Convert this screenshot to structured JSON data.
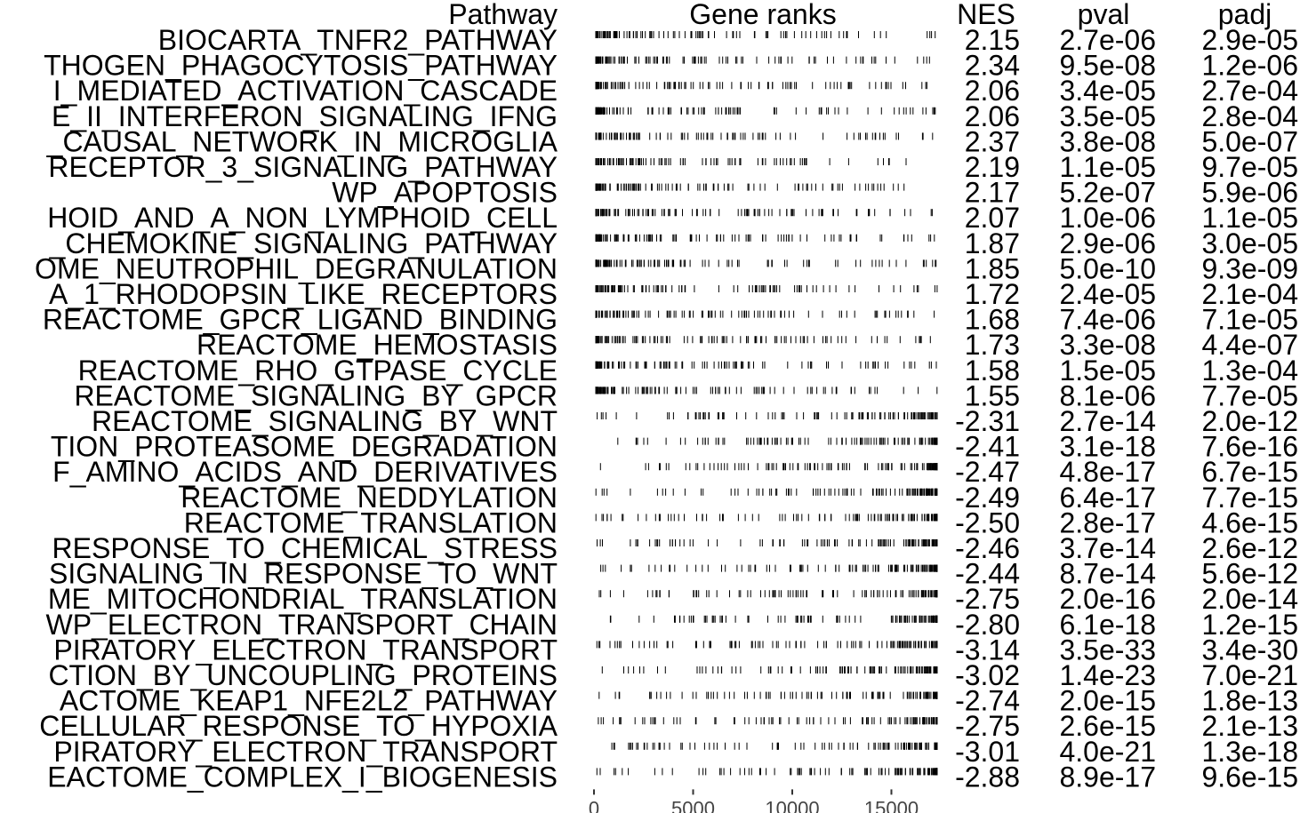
{
  "headers": {
    "pathway": "Pathway",
    "gene_ranks": "Gene ranks",
    "nes": "NES",
    "pval": "pval",
    "padj": "padj"
  },
  "chart_data": {
    "type": "table",
    "columns": [
      "Pathway",
      "Gene ranks",
      "NES",
      "pval",
      "padj"
    ],
    "x_axis": {
      "ticks": [
        0,
        5000,
        10000,
        15000
      ],
      "range": [
        0,
        17400
      ]
    },
    "rows": [
      {
        "pathway": "BIOCARTA_TNFR2_PATHWAY",
        "nes": "2.15",
        "pval": "2.7e-06",
        "padj": "2.9e-05"
      },
      {
        "pathway": "THOGEN_PHAGOCYTOSIS_PATHWAY",
        "nes": "2.34",
        "pval": "9.5e-08",
        "padj": "1.2e-06"
      },
      {
        "pathway": "I_MEDIATED_ACTIVATION_CASCADE",
        "nes": "2.06",
        "pval": "3.4e-05",
        "padj": "2.7e-04"
      },
      {
        "pathway": "E_II_INTERFERON_SIGNALING_IFNG",
        "nes": "2.06",
        "pval": "3.5e-05",
        "padj": "2.8e-04"
      },
      {
        "pathway": "_CAUSAL_NETWORK_IN_MICROGLIA",
        "nes": "2.37",
        "pval": "3.8e-08",
        "padj": "5.0e-07"
      },
      {
        "pathway": "RECEPTOR_3_SIGNALING_PATHWAY",
        "nes": "2.19",
        "pval": "1.1e-05",
        "padj": "9.7e-05"
      },
      {
        "pathway": "WP_APOPTOSIS",
        "nes": "2.17",
        "pval": "5.2e-07",
        "padj": "5.9e-06"
      },
      {
        "pathway": "HOID_AND_A_NON_LYMPHOID_CELL",
        "nes": "2.07",
        "pval": "1.0e-06",
        "padj": "1.1e-05"
      },
      {
        "pathway": "_CHEMOKINE_SIGNALING_PATHWAY",
        "nes": "1.87",
        "pval": "2.9e-06",
        "padj": "3.0e-05"
      },
      {
        "pathway": "OME_NEUTROPHIL_DEGRANULATION",
        "nes": "1.85",
        "pval": "5.0e-10",
        "padj": "9.3e-09"
      },
      {
        "pathway": "A_1_RHODOPSIN_LIKE_RECEPTORS",
        "nes": "1.72",
        "pval": "2.4e-05",
        "padj": "2.1e-04"
      },
      {
        "pathway": "REACTOME_GPCR_LIGAND_BINDING",
        "nes": "1.68",
        "pval": "7.4e-06",
        "padj": "7.1e-05"
      },
      {
        "pathway": "REACTOME_HEMOSTASIS",
        "nes": "1.73",
        "pval": "3.3e-08",
        "padj": "4.4e-07"
      },
      {
        "pathway": "REACTOME_RHO_GTPASE_CYCLE",
        "nes": "1.58",
        "pval": "1.5e-05",
        "padj": "1.3e-04"
      },
      {
        "pathway": "REACTOME_SIGNALING_BY_GPCR",
        "nes": "1.55",
        "pval": "8.1e-06",
        "padj": "7.7e-05"
      },
      {
        "pathway": "REACTOME_SIGNALING_BY_WNT",
        "nes": "-2.31",
        "pval": "2.7e-14",
        "padj": "2.0e-12"
      },
      {
        "pathway": "TION_PROTEASOME_DEGRADATION",
        "nes": "-2.41",
        "pval": "3.1e-18",
        "padj": "7.6e-16"
      },
      {
        "pathway": "F_AMINO_ACIDS_AND_DERIVATIVES",
        "nes": "-2.47",
        "pval": "4.8e-17",
        "padj": "6.7e-15"
      },
      {
        "pathway": "REACTOME_NEDDYLATION",
        "nes": "-2.49",
        "pval": "6.4e-17",
        "padj": "7.7e-15"
      },
      {
        "pathway": "REACTOME_TRANSLATION",
        "nes": "-2.50",
        "pval": "2.8e-17",
        "padj": "4.6e-15"
      },
      {
        "pathway": "RESPONSE_TO_CHEMICAL_STRESS",
        "nes": "-2.46",
        "pval": "3.7e-14",
        "padj": "2.6e-12"
      },
      {
        "pathway": "SIGNALING_IN_RESPONSE_TO_WNT",
        "nes": "-2.44",
        "pval": "8.7e-14",
        "padj": "5.6e-12"
      },
      {
        "pathway": "ME_MITOCHONDRIAL_TRANSLATION",
        "nes": "-2.75",
        "pval": "2.0e-16",
        "padj": "2.0e-14"
      },
      {
        "pathway": "WP_ELECTRON_TRANSPORT_CHAIN",
        "nes": "-2.80",
        "pval": "6.1e-18",
        "padj": "1.2e-15"
      },
      {
        "pathway": "PIRATORY_ELECTRON_TRANSPORT",
        "nes": "-3.14",
        "pval": "3.5e-33",
        "padj": "3.4e-30"
      },
      {
        "pathway": "CTION_BY_UNCOUPLING_PROTEINS",
        "nes": "-3.02",
        "pval": "1.4e-23",
        "padj": "7.0e-21"
      },
      {
        "pathway": "ACTOME_KEAP1_NFE2L2_PATHWAY",
        "nes": "-2.74",
        "pval": "2.0e-15",
        "padj": "1.8e-13"
      },
      {
        "pathway": "CELLULAR_RESPONSE_TO_HYPOXIA",
        "nes": "-2.75",
        "pval": "2.6e-15",
        "padj": "2.1e-13"
      },
      {
        "pathway": "PIRATORY_ELECTRON_TRANSPORT",
        "nes": "-3.01",
        "pval": "4.0e-21",
        "padj": "1.3e-18"
      },
      {
        "pathway": "EACTOME_COMPLEX_I_BIOGENESIS",
        "nes": "-2.88",
        "pval": "8.9e-17",
        "padj": "9.6e-15"
      }
    ]
  }
}
